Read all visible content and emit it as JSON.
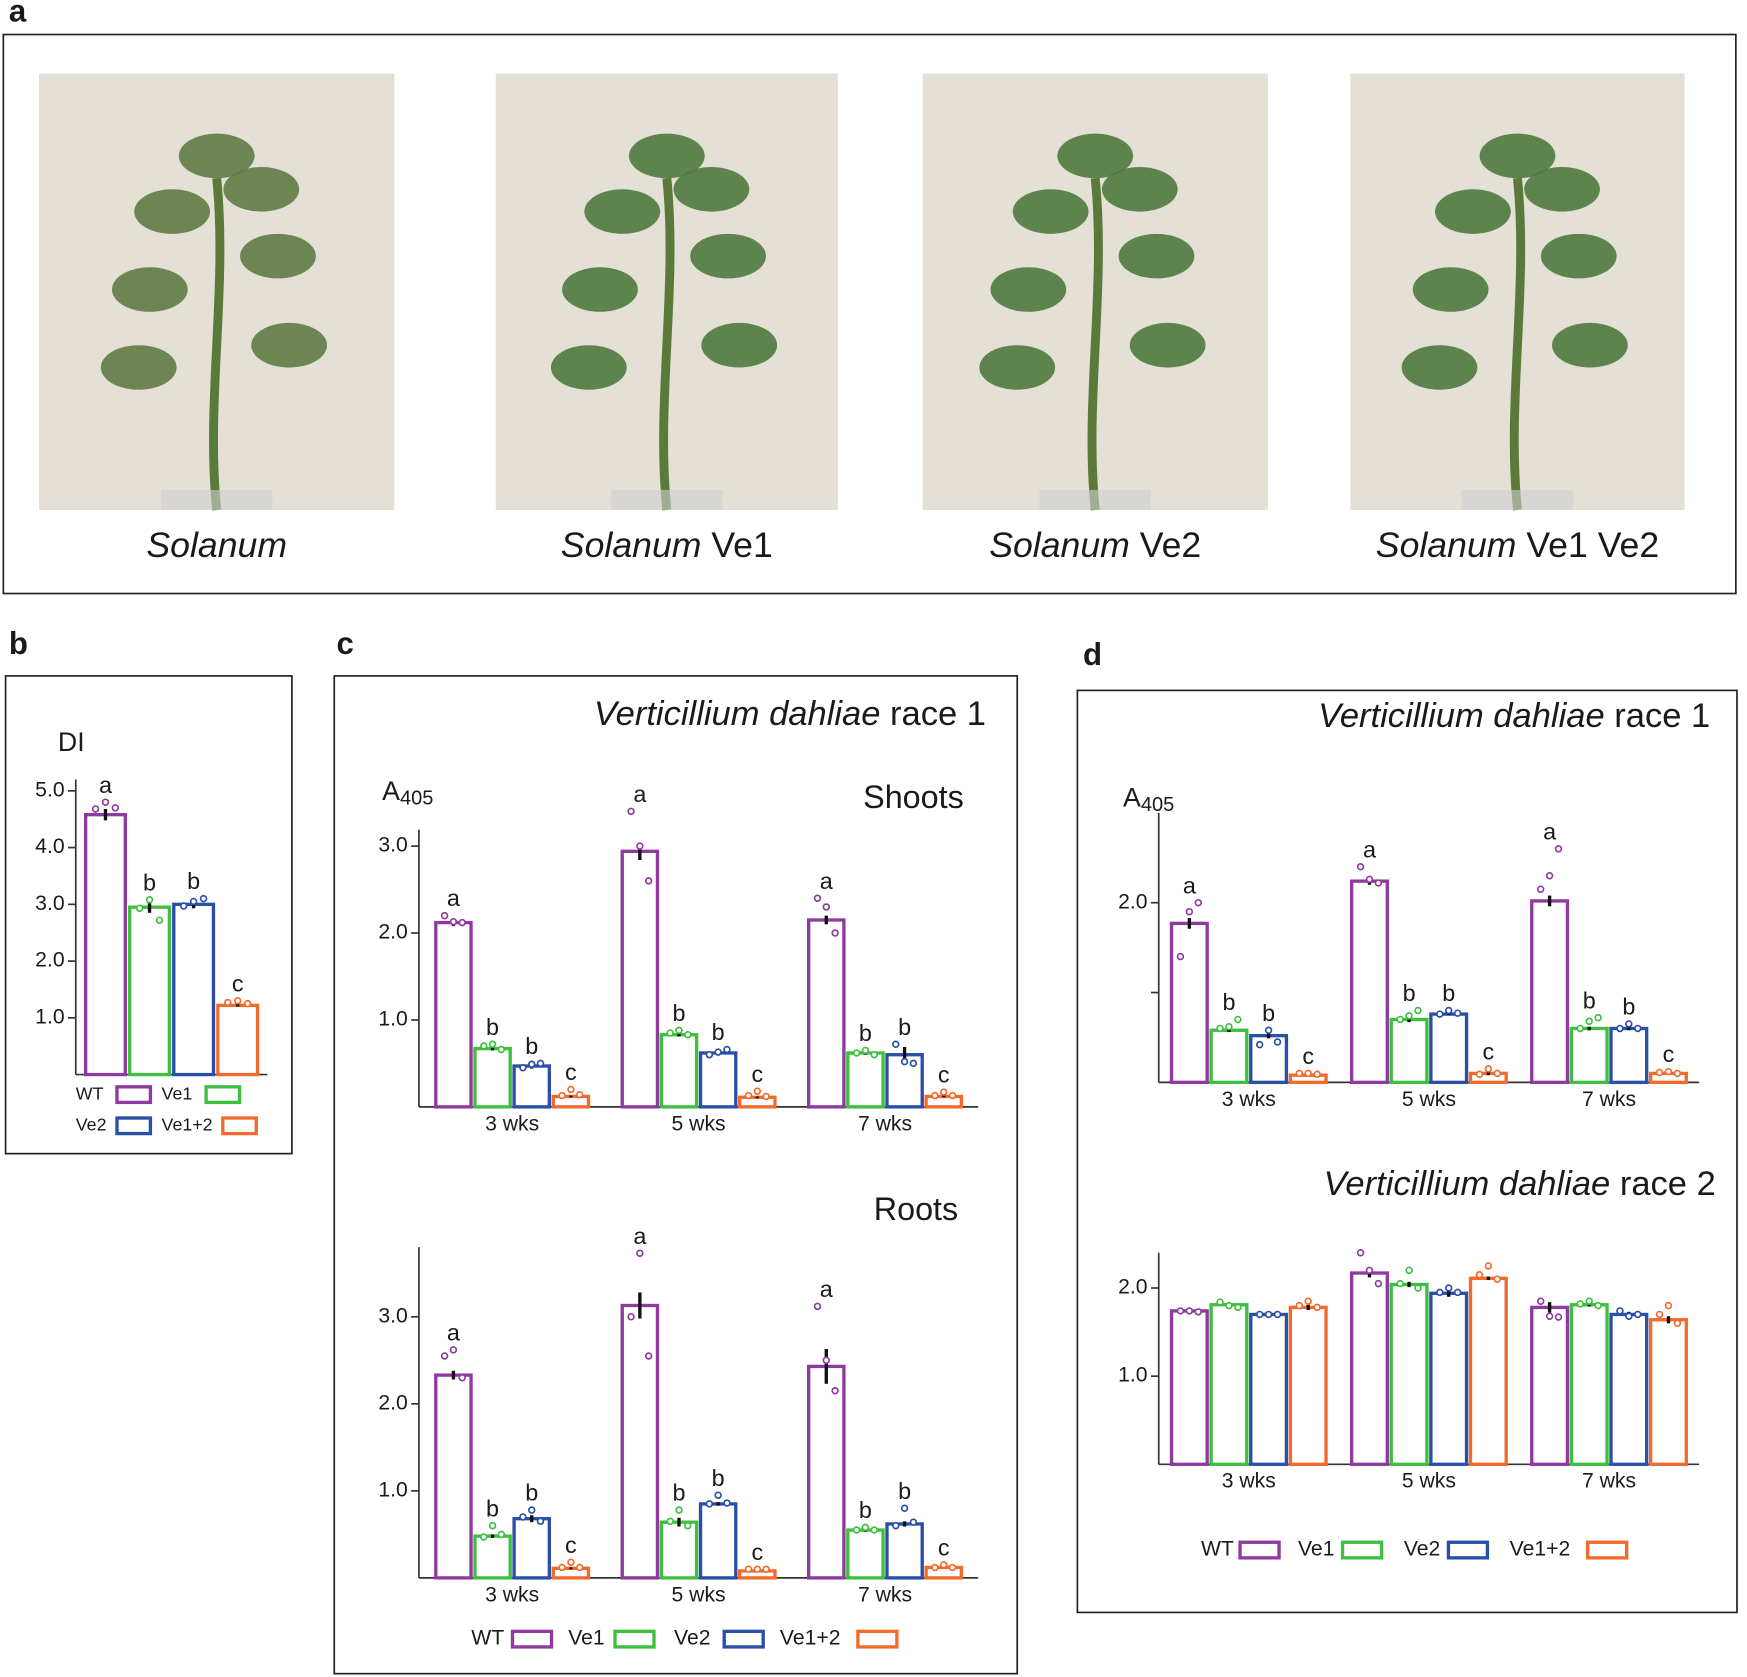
{
  "photos": {
    "panel": "a",
    "captions": [
      {
        "italic": "Solanum"
      },
      {
        "italic": "Solanum",
        "roman": "Ve1"
      },
      {
        "italic": "Solanum",
        "roman": "Ve2"
      },
      {
        "italic": "Solanum",
        "roman": "Ve1 Ve2"
      }
    ]
  },
  "chart_data": [
    {
      "type": "bar",
      "panel": "b",
      "ylabel": {
        "main": "DI"
      },
      "categories": [
        null
      ],
      "ylim": [
        0,
        5.2
      ],
      "yticks": [
        {
          "value": 1,
          "label": "1.0"
        },
        {
          "value": 2,
          "label": "2.0"
        },
        {
          "value": 3,
          "label": "3.0"
        },
        {
          "value": 4,
          "label": "4.0"
        },
        {
          "value": 5,
          "label": "5.0"
        }
      ],
      "legend": "bottom",
      "series": [
        {
          "name": "WT",
          "color": "#8e3a9e",
          "values": [
            4.58
          ],
          "errors": [
            0.1
          ],
          "points": [
            [
              4.68,
              4.8,
              4.7
            ]
          ],
          "letters": [
            "a"
          ]
        },
        {
          "name": "Ve1",
          "color": "#3fbf3f",
          "values": [
            2.95
          ],
          "errors": [
            0.1
          ],
          "points": [
            [
              2.93,
              3.08,
              2.72
            ]
          ],
          "letters": [
            "b"
          ]
        },
        {
          "name": "Ve2",
          "color": "#2a4fa8",
          "values": [
            3.0
          ],
          "errors": [
            0.07
          ],
          "points": [
            [
              2.97,
              3.05,
              3.1
            ]
          ],
          "letters": [
            "b"
          ]
        },
        {
          "name": "Ve1+2",
          "color": "#f26b2a",
          "values": [
            1.22
          ],
          "errors": [
            0.02
          ],
          "points": [
            [
              1.27,
              1.3,
              1.25
            ]
          ],
          "letters": [
            "c"
          ]
        }
      ]
    },
    {
      "type": "bar",
      "panel": "c",
      "title": {
        "italic": "Verticillium dahliae",
        "roman": "race 1"
      },
      "subtitle": "Shoots",
      "ylabel": {
        "main": "A",
        "sub": "405"
      },
      "categories": [
        "3 wks",
        "5 wks",
        "7 wks"
      ],
      "ylim": [
        0,
        3.19
      ],
      "yticks": [
        {
          "value": 1,
          "label": "1.0"
        },
        {
          "value": 2,
          "label": "2.0"
        },
        {
          "value": 3,
          "label": "3.0"
        }
      ],
      "series": [
        {
          "name": "WT",
          "color": "#8e3a9e",
          "values": [
            2.12,
            2.94,
            2.15
          ],
          "errors": [
            0.04,
            0.1,
            0.05
          ],
          "points": [
            [
              2.2,
              2.13,
              2.12
            ],
            [
              3.4,
              3.0,
              2.6
            ],
            [
              2.4,
              2.3,
              2.0
            ]
          ],
          "letters": [
            "a",
            "a",
            "a"
          ]
        },
        {
          "name": "Ve1",
          "color": "#3fbf3f",
          "values": [
            0.67,
            0.83,
            0.62
          ],
          "errors": [
            0.02,
            0.02,
            0.02
          ],
          "points": [
            [
              0.7,
              0.72,
              0.66
            ],
            [
              0.85,
              0.88,
              0.83
            ],
            [
              0.62,
              0.65,
              0.6
            ]
          ],
          "letters": [
            "b",
            "b",
            "b"
          ]
        },
        {
          "name": "Ve2",
          "color": "#2a4fa8",
          "values": [
            0.47,
            0.62,
            0.6
          ],
          "errors": [
            0.03,
            0.02,
            0.09
          ],
          "points": [
            [
              0.45,
              0.49,
              0.5
            ],
            [
              0.6,
              0.63,
              0.66
            ],
            [
              0.72,
              0.52,
              0.5
            ]
          ],
          "letters": [
            "b",
            "b",
            "b"
          ]
        },
        {
          "name": "Ve1+2",
          "color": "#f26b2a",
          "values": [
            0.12,
            0.11,
            0.12
          ],
          "errors": [
            0.01,
            0.01,
            0.01
          ],
          "points": [
            [
              0.13,
              0.2,
              0.14
            ],
            [
              0.13,
              0.18,
              0.12
            ],
            [
              0.13,
              0.17,
              0.13
            ]
          ],
          "letters": [
            "c",
            "c",
            "c"
          ]
        }
      ]
    },
    {
      "type": "bar",
      "subtitle": "Roots",
      "categories": [
        "3 wks",
        "5 wks",
        "7 wks"
      ],
      "ylim": [
        0,
        3.8
      ],
      "yticks": [
        {
          "value": 1,
          "label": "1.0"
        },
        {
          "value": 2,
          "label": "2.0"
        },
        {
          "value": 3,
          "label": "3.0"
        }
      ],
      "legend": "bottom",
      "series": [
        {
          "name": "WT",
          "color": "#8e3a9e",
          "values": [
            2.33,
            3.13,
            2.43
          ],
          "errors": [
            0.05,
            0.15,
            0.2
          ],
          "points": [
            [
              2.55,
              2.62,
              2.3
            ],
            [
              3.0,
              3.73,
              2.55
            ],
            [
              3.12,
              2.5,
              2.15
            ]
          ],
          "letters": [
            "a",
            "a",
            "a"
          ]
        },
        {
          "name": "Ve1",
          "color": "#3fbf3f",
          "values": [
            0.48,
            0.64,
            0.55
          ],
          "errors": [
            0.02,
            0.05,
            0.02
          ],
          "points": [
            [
              0.47,
              0.6,
              0.5
            ],
            [
              0.65,
              0.78,
              0.6
            ],
            [
              0.55,
              0.58,
              0.55
            ]
          ],
          "letters": [
            "b",
            "b",
            "b"
          ]
        },
        {
          "name": "Ve2",
          "color": "#2a4fa8",
          "values": [
            0.68,
            0.85,
            0.62
          ],
          "errors": [
            0.04,
            0.02,
            0.03
          ],
          "points": [
            [
              0.7,
              0.78,
              0.65
            ],
            [
              0.85,
              0.95,
              0.86
            ],
            [
              0.6,
              0.8,
              0.64
            ]
          ],
          "letters": [
            "b",
            "b",
            "b"
          ]
        },
        {
          "name": "Ve1+2",
          "color": "#f26b2a",
          "values": [
            0.11,
            0.08,
            0.12
          ],
          "errors": [
            0.01,
            0.01,
            0.01
          ],
          "points": [
            [
              0.12,
              0.18,
              0.12
            ],
            [
              0.1,
              0.1,
              0.1
            ],
            [
              0.12,
              0.15,
              0.12
            ]
          ],
          "letters": [
            "c",
            "c",
            "c"
          ]
        }
      ]
    },
    {
      "type": "bar",
      "panel": "d",
      "title": {
        "italic": "Verticillium dahliae",
        "roman": "race 1"
      },
      "ylabel": {
        "main": "A",
        "sub": "405"
      },
      "categories": [
        "3 wks",
        "5 wks",
        "7 wks"
      ],
      "ylim": [
        0,
        3.0
      ],
      "yticks": [
        {
          "value": 1,
          "label": null
        },
        {
          "value": 2,
          "label": "2.0"
        }
      ],
      "series": [
        {
          "name": "WT",
          "color": "#8e3a9e",
          "values": [
            1.77,
            2.24,
            2.02
          ],
          "errors": [
            0.06,
            0.04,
            0.06
          ],
          "points": [
            [
              1.4,
              1.9,
              2.0
            ],
            [
              2.4,
              2.26,
              2.22
            ],
            [
              2.15,
              2.3,
              2.6
            ]
          ],
          "letters": [
            "a",
            "a",
            "a"
          ]
        },
        {
          "name": "Ve1",
          "color": "#3fbf3f",
          "values": [
            0.58,
            0.7,
            0.6
          ],
          "errors": [
            0.02,
            0.03,
            0.02
          ],
          "points": [
            [
              0.6,
              0.62,
              0.7
            ],
            [
              0.7,
              0.74,
              0.8
            ],
            [
              0.6,
              0.68,
              0.72
            ]
          ],
          "letters": [
            "b",
            "b",
            "b"
          ]
        },
        {
          "name": "Ve2",
          "color": "#2a4fa8",
          "values": [
            0.52,
            0.76,
            0.6
          ],
          "errors": [
            0.03,
            0.01,
            0.02
          ],
          "points": [
            [
              0.42,
              0.58,
              0.45
            ],
            [
              0.76,
              0.8,
              0.77
            ],
            [
              0.6,
              0.65,
              0.6
            ]
          ],
          "letters": [
            "b",
            "b",
            "b"
          ]
        },
        {
          "name": "Ve1+2",
          "color": "#f26b2a",
          "values": [
            0.08,
            0.1,
            0.1
          ],
          "errors": [
            0.01,
            0.02,
            0.01
          ],
          "points": [
            [
              0.1,
              0.1,
              0.09
            ],
            [
              0.09,
              0.15,
              0.1
            ],
            [
              0.11,
              0.12,
              0.1
            ]
          ],
          "letters": [
            "c",
            "c",
            "c"
          ]
        }
      ]
    },
    {
      "type": "bar",
      "title": {
        "italic": "Verticillium dahliae",
        "roman": "race 2"
      },
      "categories": [
        "3 wks",
        "5 wks",
        "7 wks"
      ],
      "ylim": [
        0,
        2.4
      ],
      "yticks": [
        {
          "value": 1,
          "label": "1.0"
        },
        {
          "value": 2,
          "label": "2.0"
        }
      ],
      "legend": "bottom",
      "series": [
        {
          "name": "WT",
          "color": "#8e3a9e",
          "values": [
            1.74,
            2.17,
            1.78
          ],
          "errors": [
            0.01,
            0.05,
            0.06
          ],
          "points": [
            [
              1.74,
              1.74,
              1.73
            ],
            [
              2.4,
              2.2,
              2.05
            ],
            [
              1.85,
              1.68,
              1.67
            ]
          ]
        },
        {
          "name": "Ve1",
          "color": "#3fbf3f",
          "values": [
            1.81,
            2.04,
            1.81
          ],
          "errors": [
            0.01,
            0.03,
            0.02
          ],
          "points": [
            [
              1.84,
              1.8,
              1.78
            ],
            [
              2.05,
              2.2,
              2.0
            ],
            [
              1.82,
              1.85,
              1.8
            ]
          ]
        },
        {
          "name": "Ve2",
          "color": "#2a4fa8",
          "values": [
            1.7,
            1.94,
            1.7
          ],
          "errors": [
            0.01,
            0.04,
            0.03
          ],
          "points": [
            [
              1.7,
              1.7,
              1.7
            ],
            [
              1.95,
              2.0,
              1.95
            ],
            [
              1.74,
              1.68,
              1.7
            ]
          ]
        },
        {
          "name": "Ve1+2",
          "color": "#f26b2a",
          "values": [
            1.78,
            2.11,
            1.64
          ],
          "errors": [
            0.03,
            0.02,
            0.04
          ],
          "points": [
            [
              1.8,
              1.85,
              1.78
            ],
            [
              2.15,
              2.25,
              2.1
            ],
            [
              1.7,
              1.8,
              1.6
            ]
          ]
        }
      ]
    }
  ]
}
